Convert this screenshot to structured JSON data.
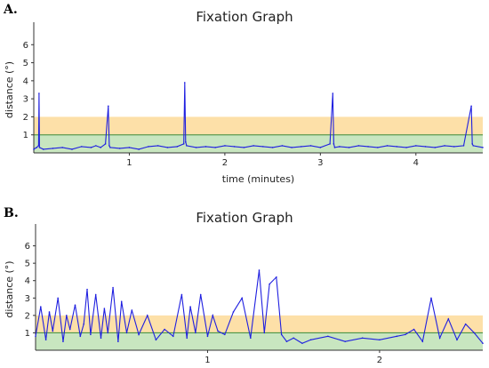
{
  "panels": [
    {
      "label": "A."
    },
    {
      "label": "B."
    }
  ],
  "colors": {
    "line": "#1f1fe0",
    "orange_band": "#fde0a8",
    "green_band": "#c8e6c0",
    "green_line": "#3a8a3a"
  },
  "chart_data": [
    {
      "type": "line",
      "title": "Fixation Graph",
      "xlabel": "time (minutes)",
      "ylabel": "distance (°)",
      "xlim": [
        0,
        4.7
      ],
      "ylim": [
        0,
        7
      ],
      "yticks": [
        "1",
        "2",
        "3",
        "4",
        "5",
        "6"
      ],
      "xticks": [
        "1",
        "2",
        "3",
        "4"
      ],
      "bands": [
        {
          "from": 0,
          "to": 1,
          "color": "green"
        },
        {
          "from": 1,
          "to": 2,
          "color": "orange"
        }
      ],
      "series": [
        {
          "x": [
            0,
            0.03,
            0.05,
            0.055,
            0.06,
            0.1,
            0.2,
            0.3,
            0.4,
            0.5,
            0.6,
            0.65,
            0.7,
            0.75,
            0.78,
            0.79,
            0.8,
            0.9,
            1.0,
            1.1,
            1.2,
            1.3,
            1.4,
            1.5,
            1.57,
            1.58,
            1.59,
            1.6,
            1.7,
            1.8,
            1.9,
            2.0,
            2.1,
            2.2,
            2.3,
            2.4,
            2.5,
            2.6,
            2.7,
            2.8,
            2.9,
            3.0,
            3.1,
            3.13,
            3.14,
            3.15,
            3.2,
            3.3,
            3.4,
            3.5,
            3.6,
            3.7,
            3.8,
            3.9,
            4.0,
            4.1,
            4.2,
            4.3,
            4.4,
            4.5,
            4.58,
            4.59,
            4.6,
            4.7
          ],
          "y": [
            0.2,
            0.3,
            0.4,
            3.3,
            0.3,
            0.2,
            0.25,
            0.3,
            0.2,
            0.35,
            0.3,
            0.4,
            0.3,
            0.5,
            2.6,
            0.4,
            0.3,
            0.25,
            0.3,
            0.2,
            0.35,
            0.4,
            0.3,
            0.35,
            0.5,
            3.9,
            0.6,
            0.4,
            0.3,
            0.35,
            0.3,
            0.4,
            0.35,
            0.3,
            0.4,
            0.35,
            0.3,
            0.4,
            0.3,
            0.35,
            0.4,
            0.3,
            0.5,
            3.3,
            0.5,
            0.3,
            0.35,
            0.3,
            0.4,
            0.35,
            0.3,
            0.4,
            0.35,
            0.3,
            0.4,
            0.35,
            0.3,
            0.4,
            0.35,
            0.4,
            2.6,
            0.5,
            0.4,
            0.3
          ]
        }
      ]
    },
    {
      "type": "line",
      "title": "Fixation Graph",
      "xlabel": "",
      "ylabel": "distance (°)",
      "xlim": [
        0,
        2.6
      ],
      "ylim": [
        0,
        7
      ],
      "yticks": [
        "1",
        "2",
        "3",
        "4",
        "5",
        "6"
      ],
      "xticks": [
        "1",
        "2"
      ],
      "bands": [
        {
          "from": 0,
          "to": 1,
          "color": "green"
        },
        {
          "from": 1,
          "to": 2,
          "color": "orange"
        }
      ],
      "series": [
        {
          "x": [
            0,
            0.03,
            0.06,
            0.08,
            0.1,
            0.13,
            0.16,
            0.18,
            0.2,
            0.23,
            0.26,
            0.28,
            0.3,
            0.32,
            0.35,
            0.38,
            0.4,
            0.42,
            0.45,
            0.48,
            0.5,
            0.53,
            0.56,
            0.6,
            0.65,
            0.7,
            0.75,
            0.8,
            0.85,
            0.88,
            0.9,
            0.93,
            0.96,
            1.0,
            1.03,
            1.06,
            1.1,
            1.15,
            1.2,
            1.25,
            1.3,
            1.33,
            1.36,
            1.4,
            1.43,
            1.46,
            1.5,
            1.55,
            1.6,
            1.7,
            1.8,
            1.9,
            2.0,
            2.1,
            2.15,
            2.2,
            2.25,
            2.3,
            2.35,
            2.4,
            2.45,
            2.5,
            2.55,
            2.6
          ],
          "y": [
            0.8,
            2.5,
            0.6,
            2.2,
            1.1,
            3.0,
            0.5,
            2.0,
            1.2,
            2.6,
            0.8,
            1.5,
            3.5,
            0.9,
            3.2,
            0.7,
            2.4,
            1.0,
            3.6,
            0.5,
            2.8,
            1.0,
            2.3,
            0.9,
            2.0,
            0.6,
            1.2,
            0.8,
            3.2,
            0.7,
            2.5,
            1.0,
            3.2,
            0.8,
            2.0,
            1.1,
            0.9,
            2.2,
            3.0,
            0.7,
            4.6,
            1.0,
            3.8,
            4.2,
            0.9,
            0.5,
            0.7,
            0.4,
            0.6,
            0.8,
            0.5,
            0.7,
            0.6,
            0.8,
            0.9,
            1.2,
            0.5,
            3.0,
            0.7,
            1.8,
            0.6,
            1.5,
            1.0,
            0.4
          ]
        }
      ]
    }
  ]
}
